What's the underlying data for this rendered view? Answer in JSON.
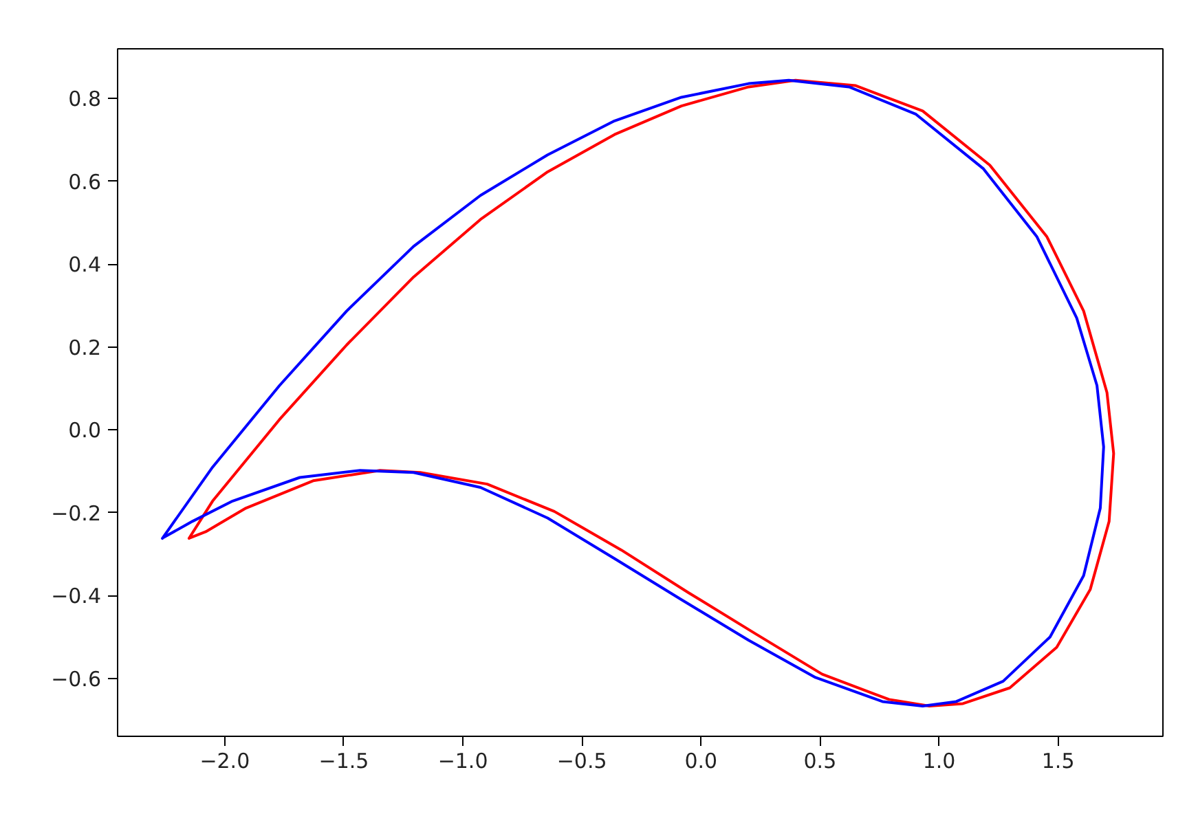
{
  "chart_data": {
    "type": "line",
    "xlim": [
      -2.45,
      1.94
    ],
    "ylim": [
      -0.74,
      0.92
    ],
    "xticks": [
      {
        "value": -2.0,
        "label": "−2.0"
      },
      {
        "value": -1.5,
        "label": "−1.5"
      },
      {
        "value": -1.0,
        "label": "−1.0"
      },
      {
        "value": -0.5,
        "label": "−0.5"
      },
      {
        "value": 0.0,
        "label": "0.0"
      },
      {
        "value": 0.5,
        "label": "0.5"
      },
      {
        "value": 1.0,
        "label": "1.0"
      },
      {
        "value": 1.5,
        "label": "1.5"
      }
    ],
    "yticks": [
      {
        "value": -0.6,
        "label": "−0.6"
      },
      {
        "value": -0.4,
        "label": "−0.4"
      },
      {
        "value": -0.2,
        "label": "−0.2"
      },
      {
        "value": 0.0,
        "label": "0.0"
      },
      {
        "value": 0.2,
        "label": "0.2"
      },
      {
        "value": 0.4,
        "label": "0.4"
      },
      {
        "value": 0.6,
        "label": "0.6"
      },
      {
        "value": 0.8,
        "label": "0.8"
      }
    ],
    "grid": false,
    "marker": "none",
    "line_style": "solid",
    "series": [
      {
        "color": "#ff0000",
        "x": [
          -2.15,
          -2.051,
          -1.77,
          -1.488,
          -1.207,
          -0.926,
          -0.644,
          -0.363,
          -0.082,
          0.2,
          0.397,
          0.65,
          0.931,
          1.213,
          1.452,
          1.607,
          1.705,
          1.733,
          1.714,
          1.635,
          1.494,
          1.297,
          1.1,
          0.959,
          0.79,
          0.509,
          0.228,
          -0.053,
          -0.335,
          -0.616,
          -0.898,
          -1.179,
          -1.348,
          -1.629,
          -1.911,
          -2.08,
          -2.146
        ],
        "values": [
          -0.262,
          -0.172,
          0.025,
          0.205,
          0.369,
          0.508,
          0.623,
          0.713,
          0.782,
          0.828,
          0.844,
          0.831,
          0.77,
          0.639,
          0.467,
          0.287,
          0.09,
          -0.057,
          -0.221,
          -0.385,
          -0.525,
          -0.623,
          -0.661,
          -0.667,
          -0.651,
          -0.59,
          -0.492,
          -0.393,
          -0.29,
          -0.197,
          -0.131,
          -0.103,
          -0.098,
          -0.123,
          -0.189,
          -0.246,
          -0.261
        ]
      },
      {
        "color": "#0000ff",
        "x": [
          -2.262,
          -2.051,
          -1.77,
          -1.488,
          -1.207,
          -0.926,
          -0.644,
          -0.363,
          -0.082,
          0.2,
          0.369,
          0.622,
          0.903,
          1.185,
          1.41,
          1.578,
          1.663,
          1.691,
          1.677,
          1.607,
          1.466,
          1.269,
          1.072,
          0.931,
          0.762,
          0.481,
          0.2,
          -0.082,
          -0.363,
          -0.644,
          -0.926,
          -1.207,
          -1.432,
          -1.685,
          -1.967,
          -2.136,
          -2.257
        ],
        "values": [
          -0.262,
          -0.09,
          0.107,
          0.287,
          0.443,
          0.566,
          0.664,
          0.746,
          0.803,
          0.836,
          0.844,
          0.828,
          0.762,
          0.631,
          0.467,
          0.27,
          0.107,
          -0.041,
          -0.189,
          -0.352,
          -0.5,
          -0.607,
          -0.656,
          -0.667,
          -0.656,
          -0.598,
          -0.508,
          -0.41,
          -0.311,
          -0.213,
          -0.139,
          -0.103,
          -0.098,
          -0.115,
          -0.172,
          -0.221,
          -0.26
        ]
      }
    ]
  }
}
